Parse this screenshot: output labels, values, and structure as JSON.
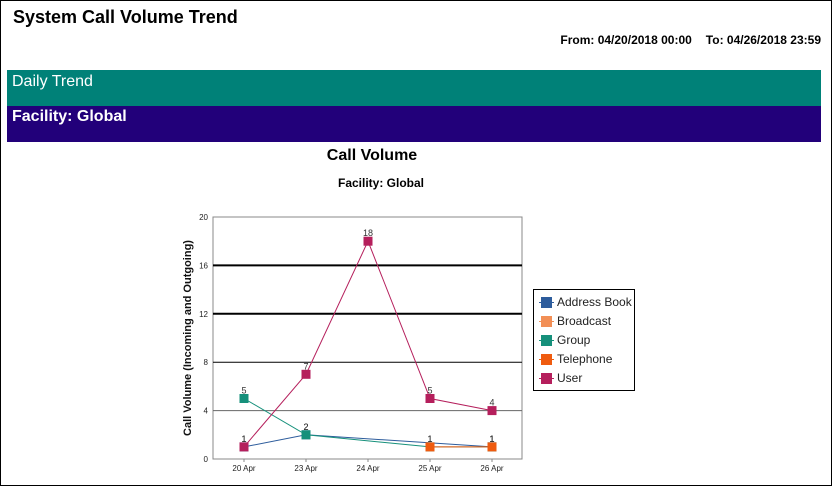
{
  "report": {
    "title": "System Call Volume Trend",
    "from_label": "From:",
    "from_value": "04/20/2018 00:00",
    "to_label": "To:",
    "to_value": "04/26/2018 23:59"
  },
  "bands": {
    "trend": "Daily Trend",
    "facility": "Facility: Global"
  },
  "colors": {
    "trend_band": "#008178",
    "facility_band": "#22007a",
    "address_book": "#2d5c9c",
    "broadcast": "#f28f56",
    "group": "#16907b",
    "telephone": "#ef5b0f",
    "user": "#b51f5c"
  },
  "chart_data": {
    "type": "line",
    "title": "Call Volume",
    "subtitle": "Facility: Global",
    "ylabel": "Call Volume (Incoming and Outgoing)",
    "xlabel": "",
    "categories": [
      "20 Apr",
      "23 Apr",
      "24 Apr",
      "25 Apr",
      "26 Apr"
    ],
    "ylim": [
      0,
      20
    ],
    "yticks": [
      0,
      4,
      8,
      12,
      16,
      20
    ],
    "grid": true,
    "legend_position": "right",
    "series": [
      {
        "name": "Address Book",
        "color": "#2d5c9c",
        "values": [
          1,
          2,
          null,
          null,
          1
        ]
      },
      {
        "name": "Broadcast",
        "color": "#f28f56",
        "values": [
          null,
          null,
          null,
          null,
          null
        ]
      },
      {
        "name": "Group",
        "color": "#16907b",
        "values": [
          5,
          2,
          null,
          1,
          1
        ]
      },
      {
        "name": "Telephone",
        "color": "#ef5b0f",
        "values": [
          null,
          null,
          null,
          1,
          1
        ]
      },
      {
        "name": "User",
        "color": "#b51f5c",
        "values": [
          1,
          7,
          18,
          5,
          4
        ]
      }
    ]
  }
}
